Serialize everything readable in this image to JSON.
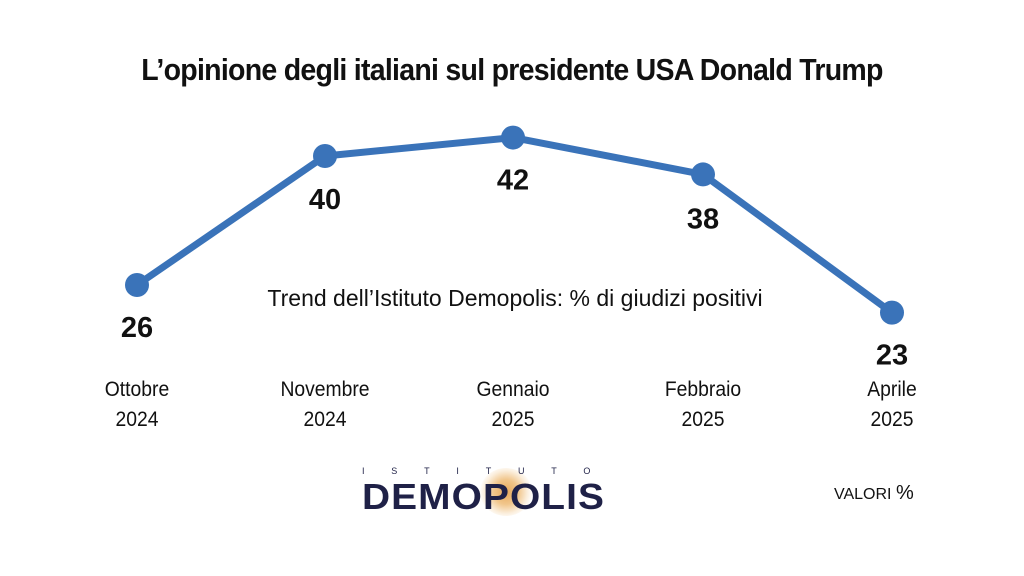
{
  "chart_data": {
    "type": "line",
    "title": "L’opinione degli italiani sul presidente USA Donald Trump",
    "subtitle": "Trend dell’Istituto Demopolis: % di giudizi positivi",
    "categories": [
      {
        "line1": "Ottobre",
        "line2": "2024"
      },
      {
        "line1": "Novembre",
        "line2": "2024"
      },
      {
        "line1": "Gennaio",
        "line2": "2025"
      },
      {
        "line1": "Febbraio",
        "line2": "2025"
      },
      {
        "line1": "Aprile",
        "line2": "2025"
      }
    ],
    "series": [
      {
        "name": "% di giudizi positivi",
        "values": [
          26,
          40,
          42,
          38,
          23
        ]
      }
    ],
    "data_labels": [
      "26",
      "40",
      "42",
      "38",
      "23"
    ],
    "xlabel": "",
    "ylabel": "",
    "ylim": [
      20,
      45
    ],
    "grid": false,
    "line_color": "#3a73b9"
  },
  "logo": {
    "top_text": "ISTITUTO",
    "main_text": "DEMOPOLIS"
  },
  "footer": {
    "units_label": "VALORI",
    "units_symbol": "%"
  }
}
